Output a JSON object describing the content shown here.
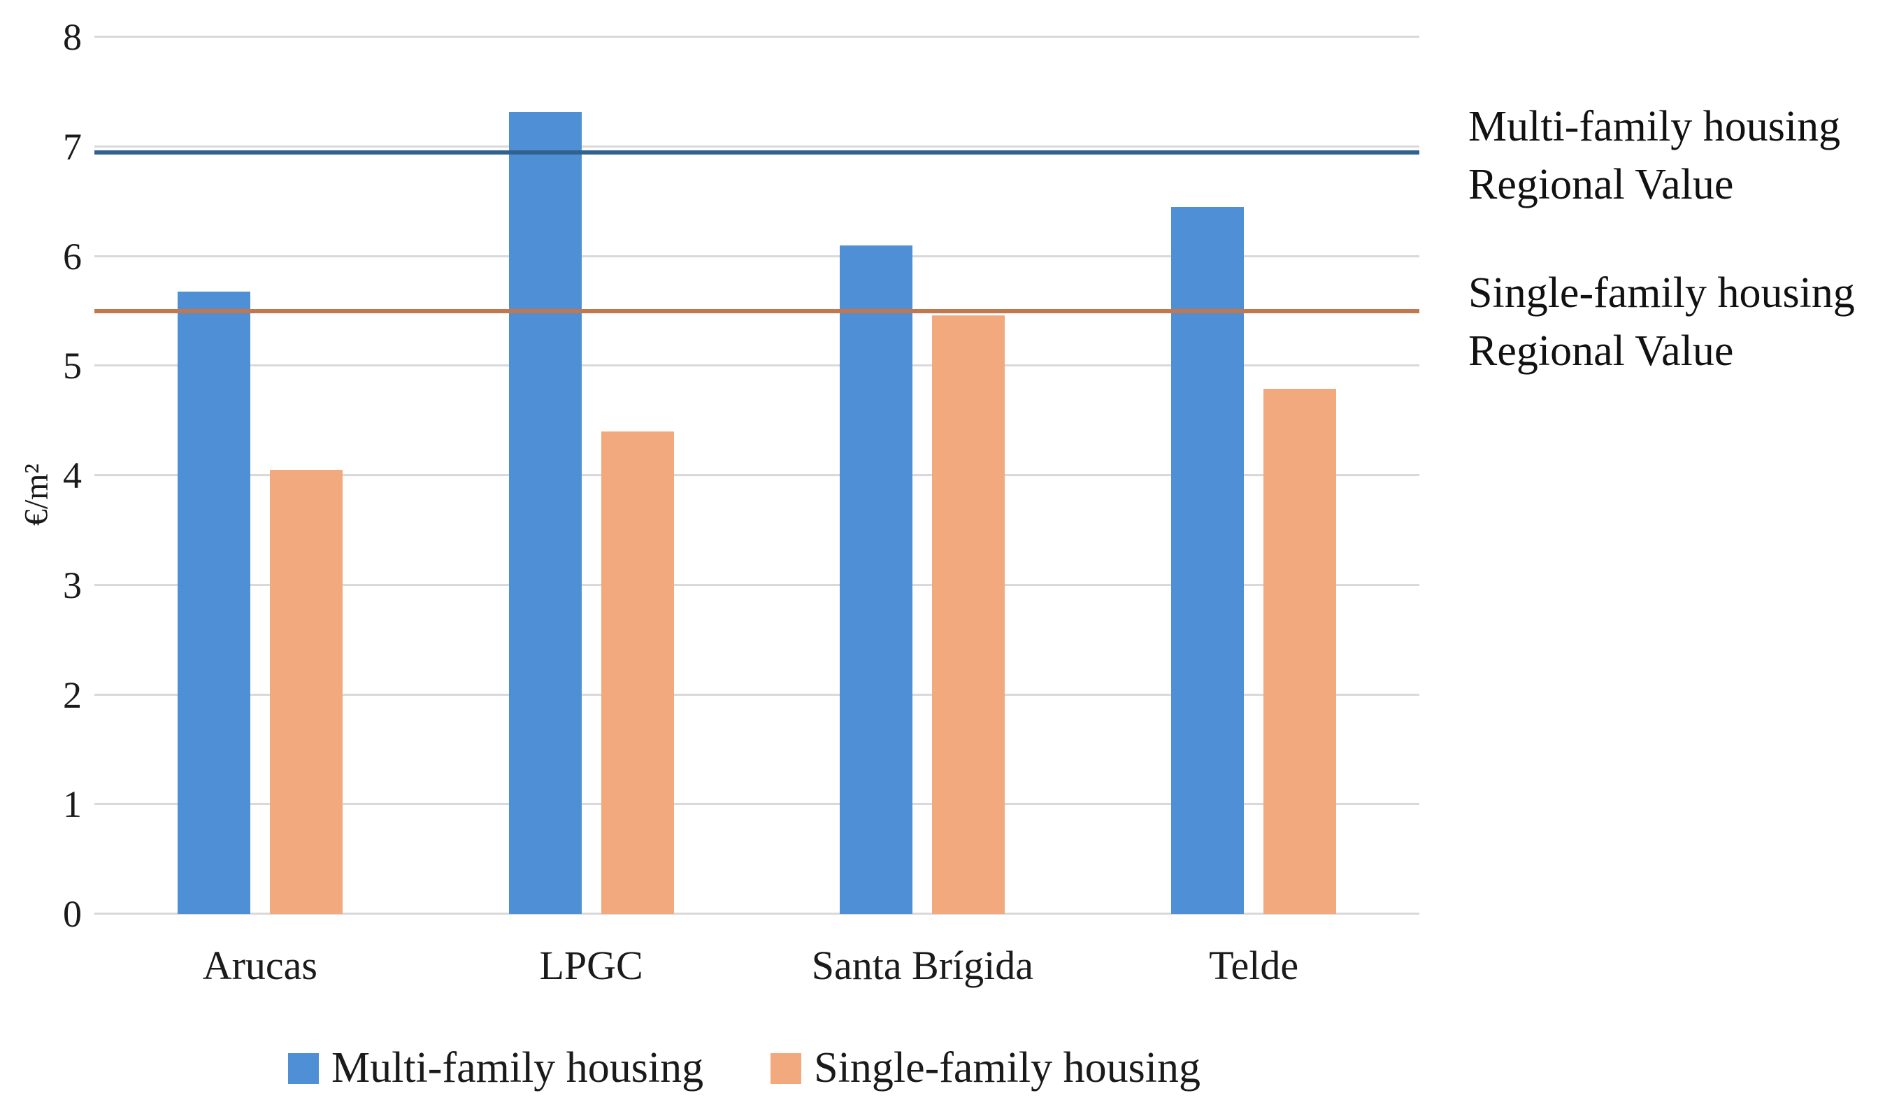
{
  "chart_data": {
    "type": "bar",
    "title": "",
    "categories": [
      "Arucas",
      "LPGC",
      "Santa Brígida",
      "Telde"
    ],
    "series": [
      {
        "name": "Multi-family housing",
        "color": "#4F8FD5",
        "values": [
          5.68,
          7.32,
          6.1,
          6.45
        ]
      },
      {
        "name": "Single-family housing",
        "color": "#F2A97E",
        "values": [
          4.05,
          4.4,
          5.46,
          4.79
        ]
      }
    ],
    "reference_lines": [
      {
        "value": 6.95,
        "color": "#30618F",
        "label_lines": [
          "Multi-family housing",
          "Regional Value"
        ],
        "annotation_top": 140
      },
      {
        "value": 5.5,
        "color": "#C1784E",
        "label_lines": [
          "Single-family housing",
          "Regional Value"
        ],
        "annotation_top": 378
      }
    ],
    "xlabel": "",
    "ylabel": "€/m²",
    "ylim": [
      0,
      8
    ],
    "yticks": [
      0,
      1,
      2,
      3,
      4,
      5,
      6,
      7,
      8
    ],
    "grid": true,
    "legend_position": "bottom",
    "gridline_color": "#D9D9D9",
    "text_color": "#1A1A1A"
  }
}
